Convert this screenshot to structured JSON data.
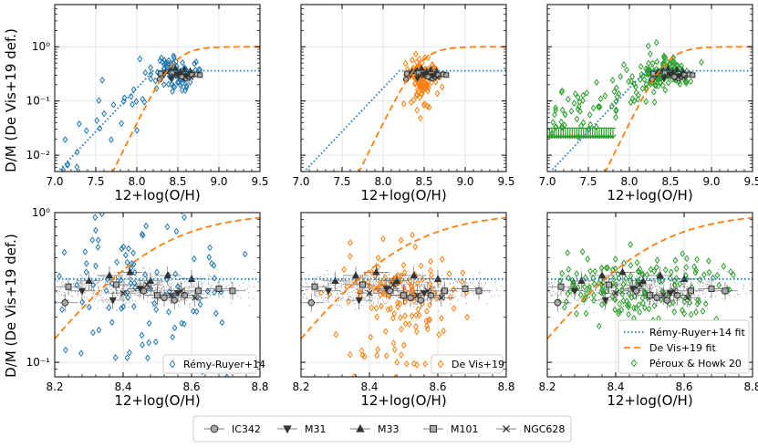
{
  "chart_data": {
    "type": "scatter",
    "figure_ylabel": "D/M (De Vis+19 def.)",
    "colors": {
      "remy": "#1f77b4",
      "devis": "#ff7f0e",
      "peroux": "#2ca02c",
      "ref": "#333333"
    },
    "top_row": {
      "xlabel": "12+log(O/H)",
      "xlim": [
        7.0,
        9.5
      ],
      "ylim": [
        0.005,
        6.0
      ],
      "yscale": "log",
      "xticks": [
        "7.0",
        "7.5",
        "8.0",
        "8.5",
        "9.0",
        "9.5"
      ],
      "yticks": [
        "10⁻²",
        "10⁻¹",
        "10⁰"
      ]
    },
    "bottom_row": {
      "xlabel": "12+log(O/H)",
      "xlim": [
        8.2,
        8.8
      ],
      "ylim": [
        0.08,
        1.0
      ],
      "yscale": "log",
      "xticks": [
        "8.2",
        "8.4",
        "8.6",
        "8.8"
      ],
      "yticks": [
        "10⁻¹",
        "10⁰"
      ]
    },
    "panels": [
      {
        "id": "remy",
        "label": "Rémy-Ruyer+14"
      },
      {
        "id": "devis",
        "label": "De Vis+19"
      },
      {
        "id": "peroux",
        "label": "Péroux & Howk 20"
      }
    ],
    "fit_lines": [
      {
        "name": "Rémy-Ruyer+14 fit",
        "style": "dotted",
        "color": "#1f77b4",
        "x_break": 8.2,
        "plateau": 0.36,
        "slope_dex_per_dex": 1.6
      },
      {
        "name": "De Vis+19 fit",
        "style": "dashed",
        "color": "#ff7f0e",
        "description": "sigmoid",
        "max": 1.0,
        "x_mid": 8.45,
        "width": 0.5
      }
    ],
    "legend_right": [
      "Rémy-Ruyer+14 fit",
      "De Vis+19 fit",
      "Péroux & Howk 20"
    ],
    "galaxies": [
      {
        "name": "IC342",
        "marker": "circle",
        "points": [
          [
            8.23,
            0.25
          ],
          [
            8.46,
            0.3
          ],
          [
            8.52,
            0.27
          ],
          [
            8.55,
            0.26
          ],
          [
            8.58,
            0.28
          ]
        ]
      },
      {
        "name": "M31",
        "marker": "triangle-down",
        "points": [
          [
            8.28,
            0.3
          ],
          [
            8.37,
            0.26
          ],
          [
            8.45,
            0.31
          ],
          [
            8.5,
            0.28
          ],
          [
            8.56,
            0.29
          ]
        ]
      },
      {
        "name": "M33",
        "marker": "triangle-up",
        "points": [
          [
            8.3,
            0.35
          ],
          [
            8.36,
            0.38
          ],
          [
            8.42,
            0.4
          ],
          [
            8.48,
            0.35
          ],
          [
            8.53,
            0.38
          ],
          [
            8.6,
            0.36
          ]
        ]
      },
      {
        "name": "M101",
        "marker": "square",
        "points": [
          [
            8.24,
            0.32
          ],
          [
            8.38,
            0.33
          ],
          [
            8.5,
            0.28
          ],
          [
            8.62,
            0.3
          ],
          [
            8.68,
            0.31
          ],
          [
            8.72,
            0.3
          ]
        ]
      },
      {
        "name": "NGC628",
        "marker": "x",
        "points": [
          [
            8.4,
            0.29
          ],
          [
            8.47,
            0.33
          ],
          [
            8.54,
            0.28
          ],
          [
            8.57,
            0.3
          ],
          [
            8.61,
            0.27
          ]
        ]
      }
    ],
    "scatter_counts": {
      "remy": 110,
      "devis": 150,
      "peroux": 190,
      "background": 700
    },
    "peroux_upper_limits": {
      "x_range": [
        7.0,
        7.8
      ],
      "y": 0.025,
      "count": 30
    }
  }
}
